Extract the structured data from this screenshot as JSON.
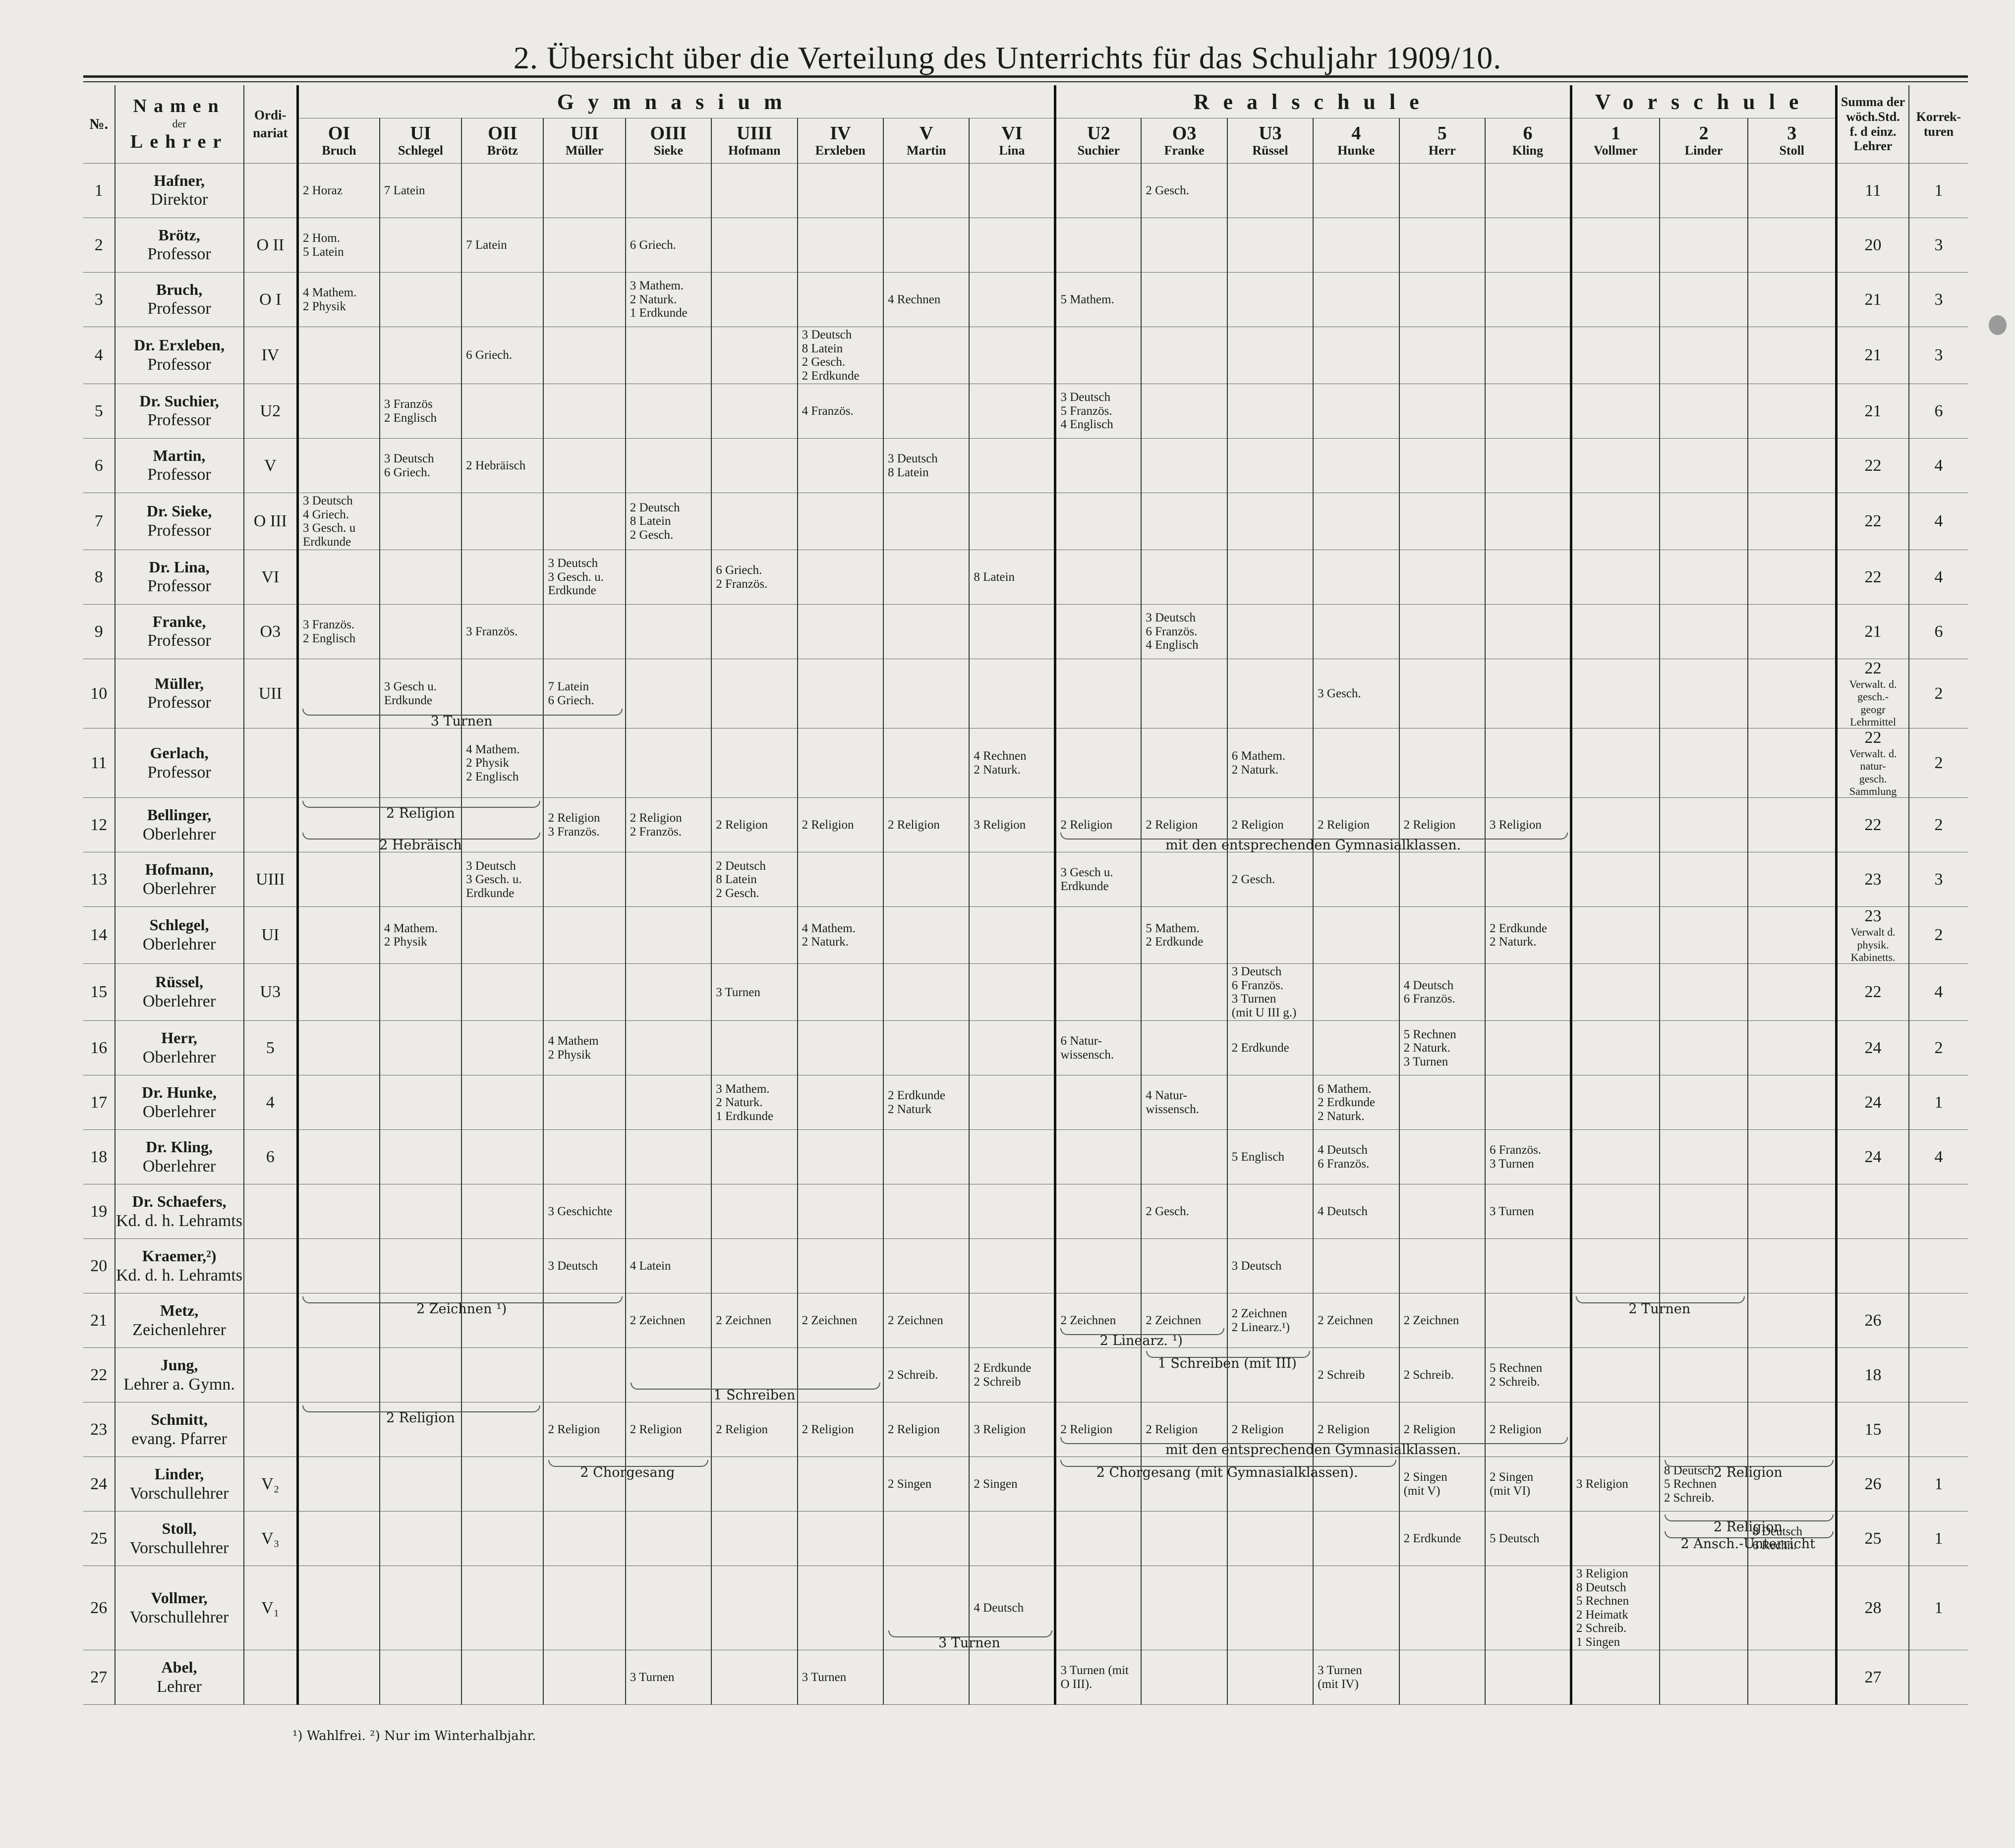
{
  "title": "2. Übersicht über die Verteilung des Unterrichts für das Schuljahr 1909/10.",
  "headers": {
    "no": "№.",
    "name_line1": "Namen",
    "name_line2": "der",
    "name_line3": "Lehrer",
    "ordinariat_line1": "Ordi-",
    "ordinariat_line2": "nariat",
    "groups": [
      "Gymnasium",
      "Realschule",
      "Vorschule"
    ],
    "sum_line1": "Summa der",
    "sum_line2": "wöch.Std.",
    "sum_line3": "f. d einz.",
    "sum_line4": "Lehrer",
    "kor_line1": "Korrek-",
    "kor_line2": "turen",
    "classes": [
      {
        "k": "OI",
        "t": "Bruch"
      },
      {
        "k": "UI",
        "t": "Schlegel"
      },
      {
        "k": "OII",
        "t": "Brötz"
      },
      {
        "k": "UII",
        "t": "Müller"
      },
      {
        "k": "OIII",
        "t": "Sieke"
      },
      {
        "k": "UIII",
        "t": "Hofmann"
      },
      {
        "k": "IV",
        "t": "Erxleben"
      },
      {
        "k": "V",
        "t": "Martin"
      },
      {
        "k": "VI",
        "t": "Lina"
      },
      {
        "k": "U2",
        "t": "Suchier"
      },
      {
        "k": "O3",
        "t": "Franke"
      },
      {
        "k": "U3",
        "t": "Rüssel"
      },
      {
        "k": "4",
        "t": "Hunke"
      },
      {
        "k": "5",
        "t": "Herr"
      },
      {
        "k": "6",
        "t": "Kling"
      },
      {
        "k": "1",
        "t": "Vollmer"
      },
      {
        "k": "2",
        "t": "Linder"
      },
      {
        "k": "3",
        "t": "Stoll"
      }
    ]
  },
  "rows": [
    {
      "no": "1",
      "name": "Hafner,",
      "rank": "Direktor",
      "ord": "",
      "cells": [
        "2 Horaz",
        "7 Latein",
        "",
        "",
        "",
        "",
        "",
        "",
        "",
        "",
        "2 Gesch.",
        "",
        "",
        "",
        "",
        "",
        "",
        ""
      ],
      "sum": "11",
      "kor": "1",
      "note": ""
    },
    {
      "no": "2",
      "name": "Brötz,",
      "rank": "Professor",
      "ord": "O II",
      "cells": [
        "2 Hom.\n5 Latein",
        "",
        "7 Latein",
        "",
        "6 Griech.",
        "",
        "",
        "",
        "",
        "",
        "",
        "",
        "",
        "",
        "",
        "",
        "",
        ""
      ],
      "sum": "20",
      "kor": "3",
      "note": ""
    },
    {
      "no": "3",
      "name": "Bruch,",
      "rank": "Professor",
      "ord": "O I",
      "cells": [
        "4 Mathem.\n2 Physik",
        "",
        "",
        "",
        "3 Mathem.\n2 Naturk.\n1 Erdkunde",
        "",
        "",
        "4 Rechnen",
        "",
        "5 Mathem.",
        "",
        "",
        "",
        "",
        "",
        "",
        "",
        ""
      ],
      "sum": "21",
      "kor": "3",
      "note": ""
    },
    {
      "no": "4",
      "name": "Dr. Erxleben,",
      "rank": "Professor",
      "ord": "IV",
      "cells": [
        "",
        "",
        "6 Griech.",
        "",
        "",
        "",
        "3 Deutsch\n8 Latein\n2 Gesch.\n2 Erdkunde",
        "",
        "",
        "",
        "",
        "",
        "",
        "",
        "",
        "",
        "",
        ""
      ],
      "sum": "21",
      "kor": "3",
      "note": ""
    },
    {
      "no": "5",
      "name": "Dr. Suchier,",
      "rank": "Professor",
      "ord": "U2",
      "cells": [
        "",
        "3 Französ\n2 Englisch",
        "",
        "",
        "",
        "",
        "4 Französ.",
        "",
        "",
        "3 Deutsch\n5 Französ.\n4 Englisch",
        "",
        "",
        "",
        "",
        "",
        "",
        "",
        ""
      ],
      "sum": "21",
      "kor": "6",
      "note": ""
    },
    {
      "no": "6",
      "name": "Martin,",
      "rank": "Professor",
      "ord": "V",
      "cells": [
        "",
        "3 Deutsch\n6 Griech.",
        "2 Hebräisch",
        "",
        "",
        "",
        "",
        "3 Deutsch\n8 Latein",
        "",
        "",
        "",
        "",
        "",
        "",
        "",
        "",
        "",
        ""
      ],
      "sum": "22",
      "kor": "4",
      "note": ""
    },
    {
      "no": "7",
      "name": "Dr. Sieke,",
      "rank": "Professor",
      "ord": "O III",
      "cells": [
        "3 Deutsch\n4 Griech.\n3 Gesch. u\nErdkunde",
        "",
        "",
        "",
        "2 Deutsch\n8 Latein\n2 Gesch.",
        "",
        "",
        "",
        "",
        "",
        "",
        "",
        "",
        "",
        "",
        "",
        "",
        ""
      ],
      "sum": "22",
      "kor": "4",
      "note": ""
    },
    {
      "no": "8",
      "name": "Dr. Lina,",
      "rank": "Professor",
      "ord": "VI",
      "cells": [
        "",
        "",
        "",
        "3 Deutsch\n3 Gesch. u.\nErdkunde",
        "",
        "6 Griech.\n2 Französ.",
        "",
        "",
        "8 Latein",
        "",
        "",
        "",
        "",
        "",
        "",
        "",
        "",
        ""
      ],
      "sum": "22",
      "kor": "4",
      "note": ""
    },
    {
      "no": "9",
      "name": "Franke,",
      "rank": "Professor",
      "ord": "O3",
      "cells": [
        "3 Französ.\n2 Englisch",
        "",
        "3 Französ.",
        "",
        "",
        "",
        "",
        "",
        "",
        "",
        "3 Deutsch\n6 Französ.\n4 Englisch",
        "",
        "",
        "",
        "",
        "",
        "",
        ""
      ],
      "sum": "21",
      "kor": "6",
      "note": ""
    },
    {
      "no": "10",
      "name": "Müller,",
      "rank": "Professor",
      "ord": "UII",
      "cells": [
        "",
        "3 Gesch u.\nErdkunde",
        "",
        "7 Latein\n6 Griech.",
        "",
        "",
        "",
        "",
        "",
        "",
        "",
        "",
        "3 Gesch.",
        "",
        "",
        "",
        "",
        ""
      ],
      "sum": "22",
      "kor": "2",
      "note": "Verwalt. d. gesch.-\ngeogr Lehrmittel"
    },
    {
      "no": "11",
      "name": "Gerlach,",
      "rank": "Professor",
      "ord": "",
      "cells": [
        "",
        "",
        "4 Mathem.\n2 Physik\n2 Englisch",
        "",
        "",
        "",
        "",
        "",
        "4 Rechnen\n2 Naturk.",
        "",
        "",
        "6 Mathem.\n2 Naturk.",
        "",
        "",
        "",
        "",
        "",
        ""
      ],
      "sum": "22",
      "kor": "2",
      "note": "Verwalt. d. natur-\ngesch. Sammlung"
    },
    {
      "no": "12",
      "name": "Bellinger,",
      "rank": "Oberlehrer",
      "ord": "",
      "cells": [
        "",
        "",
        "",
        "2 Religion\n3 Französ.",
        "2 Religion\n2 Französ.",
        "2 Religion",
        "2 Religion",
        "2 Religion",
        "3 Religion",
        "2 Religion",
        "2 Religion",
        "2 Religion",
        "2 Religion",
        "2 Religion",
        "3 Religion",
        "",
        "",
        ""
      ],
      "sum": "22",
      "kor": "2",
      "note": ""
    },
    {
      "no": "13",
      "name": "Hofmann,",
      "rank": "Oberlehrer",
      "ord": "UIII",
      "cells": [
        "",
        "",
        "3 Deutsch\n3 Gesch. u.\nErdkunde",
        "",
        "",
        "2 Deutsch\n8 Latein\n2 Gesch.",
        "",
        "",
        "",
        "3 Gesch u.\nErdkunde",
        "",
        "2 Gesch.",
        "",
        "",
        "",
        "",
        "",
        ""
      ],
      "sum": "23",
      "kor": "3",
      "note": ""
    },
    {
      "no": "14",
      "name": "Schlegel,",
      "rank": "Oberlehrer",
      "ord": "UI",
      "cells": [
        "",
        "4 Mathem.\n2 Physik",
        "",
        "",
        "",
        "",
        "4 Mathem.\n2 Naturk.",
        "",
        "",
        "",
        "5 Mathem.\n2 Erdkunde",
        "",
        "",
        "",
        "2 Erdkunde\n2 Naturk.",
        "",
        "",
        ""
      ],
      "sum": "23",
      "kor": "2",
      "note": "Verwalt d. physik.\nKabinetts."
    },
    {
      "no": "15",
      "name": "Rüssel,",
      "rank": "Oberlehrer",
      "ord": "U3",
      "cells": [
        "",
        "",
        "",
        "",
        "",
        "3 Turnen",
        "",
        "",
        "",
        "",
        "",
        "3 Deutsch\n6 Französ.\n3 Turnen\n(mit U III g.)",
        "",
        "4 Deutsch\n6 Französ.",
        "",
        "",
        "",
        ""
      ],
      "sum": "22",
      "kor": "4",
      "note": ""
    },
    {
      "no": "16",
      "name": "Herr,",
      "rank": "Oberlehrer",
      "ord": "5",
      "cells": [
        "",
        "",
        "",
        "4 Mathem\n2 Physik",
        "",
        "",
        "",
        "",
        "",
        "6 Natur-\nwissensch.",
        "",
        "2 Erdkunde",
        "",
        "5 Rechnen\n2 Naturk.\n3 Turnen",
        "",
        "",
        "",
        ""
      ],
      "sum": "24",
      "kor": "2",
      "note": ""
    },
    {
      "no": "17",
      "name": "Dr. Hunke,",
      "rank": "Oberlehrer",
      "ord": "4",
      "cells": [
        "",
        "",
        "",
        "",
        "",
        "3 Mathem.\n2 Naturk.\n1 Erdkunde",
        "",
        "2 Erdkunde\n2 Naturk",
        "",
        "",
        "4 Natur-\nwissensch.",
        "",
        "6 Mathem.\n2 Erdkunde\n2 Naturk.",
        "",
        "",
        "",
        "",
        ""
      ],
      "sum": "24",
      "kor": "1",
      "note": ""
    },
    {
      "no": "18",
      "name": "Dr. Kling,",
      "rank": "Oberlehrer",
      "ord": "6",
      "cells": [
        "",
        "",
        "",
        "",
        "",
        "",
        "",
        "",
        "",
        "",
        "",
        "5 Englisch",
        "4 Deutsch\n6 Französ.",
        "",
        "6 Französ.\n3 Turnen",
        "",
        "",
        ""
      ],
      "sum": "24",
      "kor": "4",
      "note": ""
    },
    {
      "no": "19",
      "name": "Dr. Schaefers,",
      "rank": "Kd. d. h. Lehramts",
      "ord": "",
      "cells": [
        "",
        "",
        "",
        "3 Geschichte",
        "",
        "",
        "",
        "",
        "",
        "",
        "2 Gesch.",
        "",
        "4 Deutsch",
        "",
        "3 Turnen",
        "",
        "",
        ""
      ],
      "sum": "",
      "kor": "",
      "note": ""
    },
    {
      "no": "20",
      "name": "Kraemer,²)",
      "rank": "Kd. d. h. Lehramts",
      "ord": "",
      "cells": [
        "",
        "",
        "",
        "3 Deutsch",
        "4 Latein",
        "",
        "",
        "",
        "",
        "",
        "",
        "3 Deutsch",
        "",
        "",
        "",
        "",
        "",
        ""
      ],
      "sum": "",
      "kor": "",
      "note": ""
    },
    {
      "no": "21",
      "name": "Metz,",
      "rank": "Zeichenlehrer",
      "ord": "",
      "cells": [
        "",
        "",
        "",
        "",
        "2 Zeichnen",
        "2 Zeichnen",
        "2 Zeichnen",
        "2 Zeichnen",
        "",
        "2 Zeichnen",
        "2 Zeichnen",
        "2 Zeichnen\n2 Linearz.¹)",
        "2 Zeichnen",
        "2 Zeichnen",
        "",
        "",
        "",
        ""
      ],
      "sum": "26",
      "kor": "",
      "note": ""
    },
    {
      "no": "22",
      "name": "Jung,",
      "rank": "Lehrer a. Gymn.",
      "ord": "",
      "cells": [
        "",
        "",
        "",
        "",
        "",
        "",
        "",
        "2 Schreib.",
        "2 Erdkunde\n2 Schreib",
        "",
        "",
        "",
        "2 Schreib",
        "2 Schreib.",
        "5 Rechnen\n2 Schreib.",
        "",
        "",
        ""
      ],
      "sum": "18",
      "kor": "",
      "note": ""
    },
    {
      "no": "23",
      "name": "Schmitt,",
      "rank": "evang. Pfarrer",
      "ord": "",
      "cells": [
        "",
        "",
        "",
        "2 Religion",
        "2 Religion",
        "2 Religion",
        "2 Religion",
        "2 Religion",
        "3 Religion",
        "2 Religion",
        "2 Religion",
        "2 Religion",
        "2 Religion",
        "2 Religion",
        "2 Religion",
        "",
        "",
        ""
      ],
      "sum": "15",
      "kor": "",
      "note": ""
    },
    {
      "no": "24",
      "name": "Linder,",
      "rank": "Vorschullehrer",
      "ord": "V₂",
      "cells": [
        "",
        "",
        "",
        "",
        "",
        "",
        "",
        "2 Singen",
        "2 Singen",
        "",
        "",
        "",
        "",
        "2 Singen\n(mit V)",
        "2 Singen\n(mit VI)",
        "3 Religion",
        "8 Deutsch\n5 Rechnen\n2 Schreib.",
        ""
      ],
      "sum": "26",
      "kor": "1",
      "note": ""
    },
    {
      "no": "25",
      "name": "Stoll,",
      "rank": "Vorschullehrer",
      "ord": "V₃",
      "cells": [
        "",
        "",
        "",
        "",
        "",
        "",
        "",
        "",
        "",
        "",
        "",
        "",
        "",
        "2 Erdkunde",
        "5 Deutsch",
        "",
        "",
        "8 Deutsch\n6 Rechn."
      ],
      "sum": "25",
      "kor": "1",
      "note": ""
    },
    {
      "no": "26",
      "name": "Vollmer,",
      "rank": "Vorschullehrer",
      "ord": "V₁",
      "cells": [
        "",
        "",
        "",
        "",
        "",
        "",
        "",
        "",
        "4 Deutsch",
        "",
        "",
        "",
        "",
        "",
        "",
        "3 Religion\n8 Deutsch\n5 Rechnen\n2 Heimatk\n2 Schreib.\n1 Singen",
        "",
        ""
      ],
      "sum": "28",
      "kor": "1",
      "note": ""
    },
    {
      "no": "27",
      "name": "Abel,",
      "rank": "Lehrer",
      "ord": "",
      "cells": [
        "",
        "",
        "",
        "",
        "3 Turnen",
        "",
        "3 Turnen",
        "",
        "",
        "3 Turnen  (mit O III).",
        "",
        "",
        "3 Turnen\n(mit IV)",
        "",
        "",
        "",
        "",
        ""
      ],
      "sum": "27",
      "kor": "",
      "note": ""
    }
  ],
  "spans": {
    "turnen_10": "3 Turnen",
    "religion_12": "2 Religion",
    "hebraeisch_12": "2 Hebräisch",
    "gymnasial_12": "mit den entsprechenden Gymnasialklassen.",
    "zeichnen_21": "2 Zeichnen ¹)",
    "linearz_21": "2 Linearz. ¹)",
    "turnen_21": "2 Turnen",
    "schreiben_22": "1 Schreiben",
    "schreiben_iii_22": "1 Schreiben (mit III)",
    "religion_23": "2 Religion",
    "gymnasial_23": "mit den entsprechenden Gymnasialklassen.",
    "chorgesang_24": "2 Chorgesang",
    "chorgesang_r_24": "2 Chorgesang (mit Gymnasialklassen).",
    "religion_24": "2 Religion",
    "religion_25": "2 Religion",
    "ansch_25": "2 Ansch.-Unterricht",
    "turnen_26": "3 Turnen"
  },
  "footnotes": "¹) Wahlfrei.   ²) Nur im Winterhalbjahr."
}
